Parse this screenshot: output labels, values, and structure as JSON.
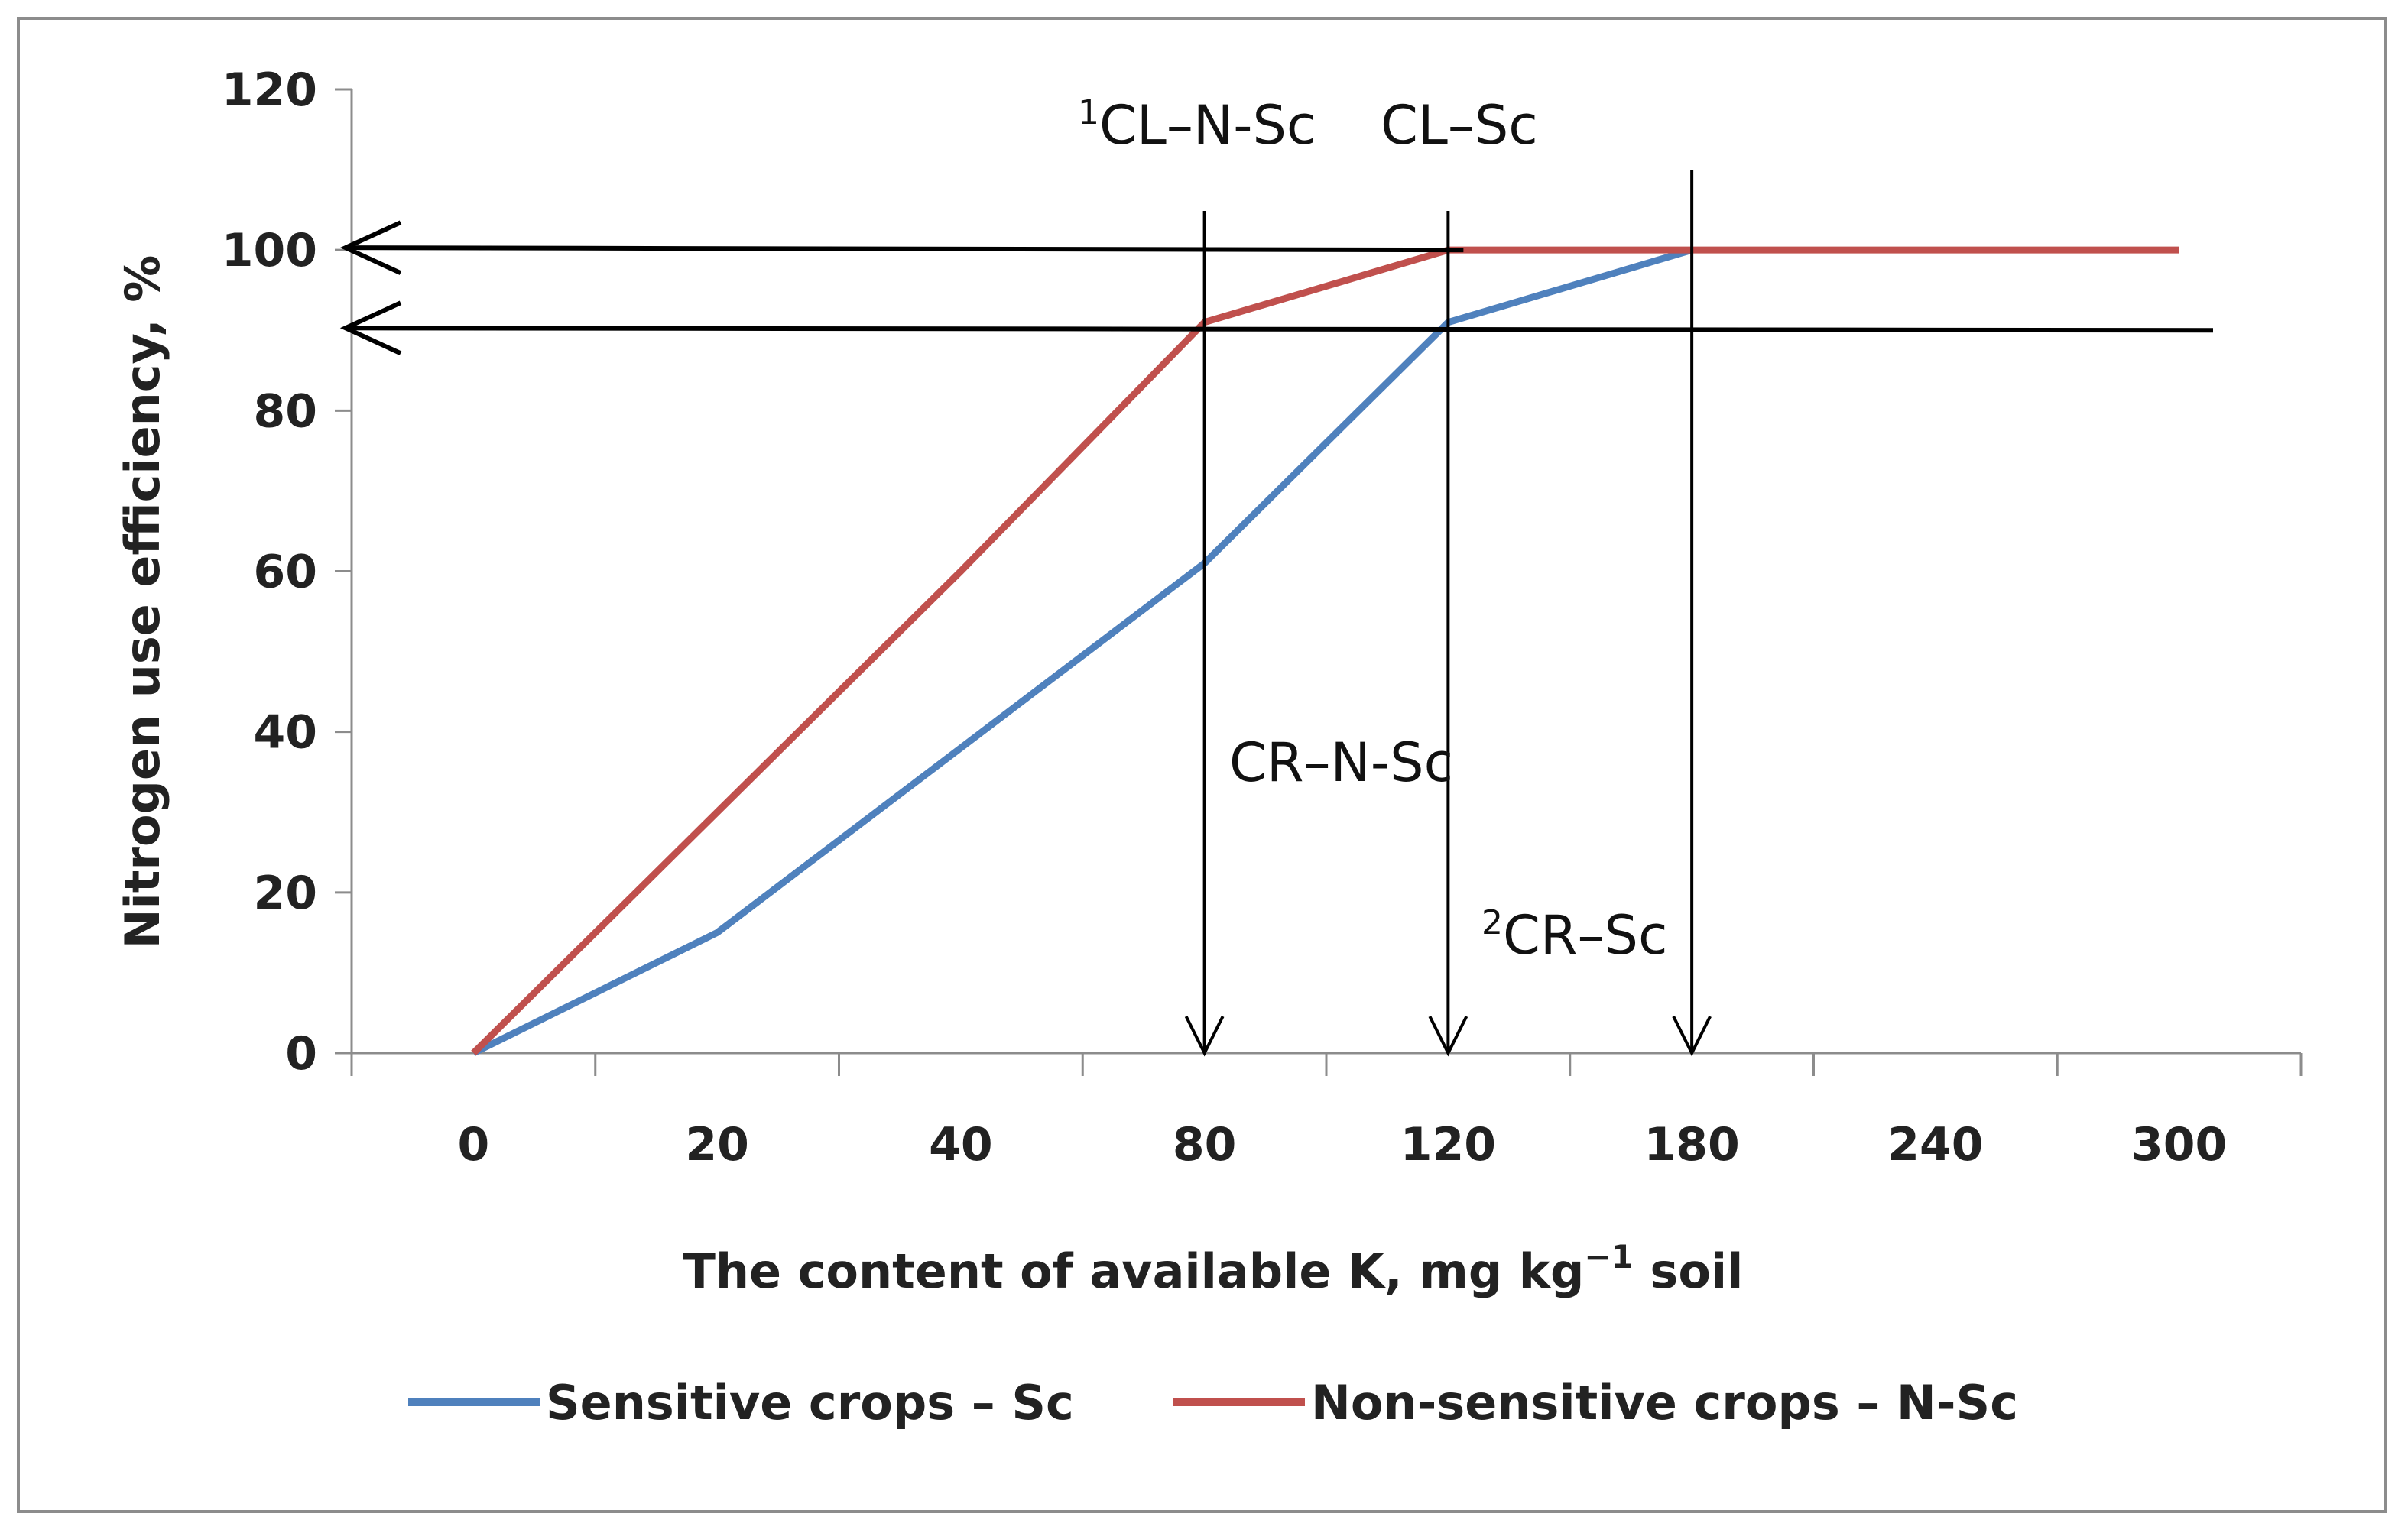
{
  "chart_data": {
    "type": "line",
    "categories": [
      "0",
      "20",
      "40",
      "80",
      "120",
      "180",
      "240",
      "300"
    ],
    "series": [
      {
        "name": "Sensitive crops – Sc",
        "values": [
          0,
          15,
          38,
          61,
          91,
          100,
          null,
          null
        ]
      },
      {
        "name": "Non-sensitive crops – N-Sc",
        "values": [
          0,
          30,
          60,
          91,
          100,
          100,
          100,
          100
        ]
      }
    ],
    "xlabel": {
      "main": "The content of available K, mg kg",
      "sup": "−1",
      "rest": " soil"
    },
    "ylabel": "Nitrogen use efficiency, %",
    "ylim": [
      0,
      120
    ],
    "yticks": [
      0,
      20,
      40,
      60,
      80,
      100,
      120
    ],
    "legend_position": "bottom",
    "horizontal_lines": [
      100,
      90
    ],
    "annotations": [
      {
        "sup": "1",
        "text": "CL–N-Sc"
      },
      {
        "sup": "",
        "text": "CL–Sc"
      },
      {
        "sup": "",
        "text": "CR–N-Sc"
      },
      {
        "sup": "2",
        "text": "CR–Sc"
      }
    ],
    "colors": {
      "Sc": "#4f81bd",
      "N-Sc": "#c0504d",
      "axis": "#8c8c8c",
      "arrow": "#000000"
    }
  }
}
